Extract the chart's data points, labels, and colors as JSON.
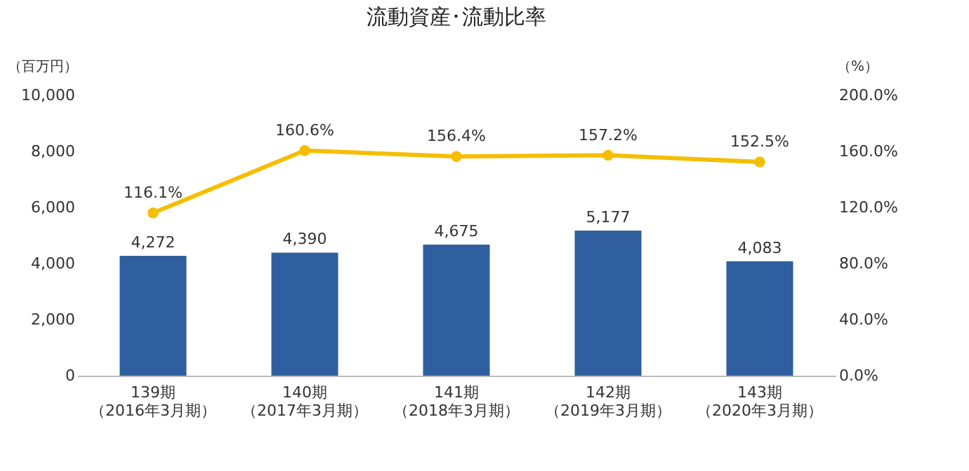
{
  "chart_data": {
    "type": "bar",
    "title": "流動資産･流動比率",
    "ylabel": "（百万円）",
    "y2label": "（%）",
    "categories": [
      "139期（2016年3月期）",
      "140期（2017年3月期）",
      "141期（2018年3月期）",
      "142期（2019年3月期）",
      "143期（2020年3月期）"
    ],
    "series": [
      {
        "color": "#2f5f9e",
        "values": [
          4272,
          4390,
          4675,
          5177,
          4083
        ],
        "value_labels": [
          "4,272",
          "4,390",
          "4,675",
          "5,177",
          "4,083"
        ]
      },
      {
        "type": "line",
        "axis": "y2",
        "color": "#f5be00",
        "marker": "circle",
        "values": [
          116.1,
          160.6,
          156.4,
          157.2,
          152.5
        ],
        "value_labels": [
          "116.1%",
          "160.6%",
          "156.4%",
          "157.2%",
          "152.5%"
        ]
      }
    ],
    "ylim": [
      0,
      10000
    ],
    "yticks": [
      0,
      {
        "value": 2000,
        "label": "2,000"
      },
      {
        "value": 4000,
        "label": "4,000"
      },
      {
        "value": 6000,
        "label": "6,000"
      },
      {
        "value": 8000,
        "label": "8,000"
      },
      {
        "value": 10000,
        "label": "10,000"
      }
    ],
    "y2lim": [
      0,
      200
    ],
    "y2ticks": [
      {
        "value": 0,
        "label": "0.0%"
      },
      {
        "value": 40,
        "label": "40.0%"
      },
      {
        "value": 80,
        "label": "80.0%"
      },
      {
        "value": 120,
        "label": "120.0%"
      },
      {
        "value": 160,
        "label": "160.0%"
      },
      {
        "value": 200,
        "label": "200.0%"
      }
    ],
    "grid": false
  }
}
